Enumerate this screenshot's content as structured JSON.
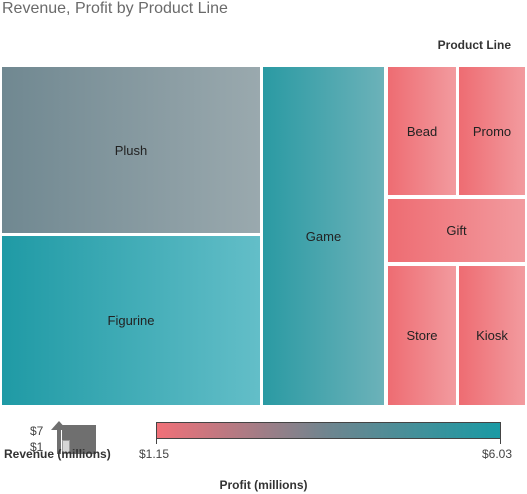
{
  "chart_data": {
    "type": "treemap",
    "title": "Revenue, Profit by Product Line",
    "legend_title": "Product Line",
    "size_measure": "Revenue (millions)",
    "color_measure": "Profit (millions)",
    "color_range": [
      "$1.15",
      "$6.03"
    ],
    "color_scale": {
      "low": "#f07078",
      "mid": "#6e858f",
      "high": "#1a9aa4"
    },
    "size_legend": {
      "max_label": "$7",
      "min_label": "$1"
    },
    "tiles": [
      {
        "label": "Plush",
        "color_from": "#708891",
        "color_to": "#9aa9ae"
      },
      {
        "label": "Figurine",
        "color_from": "#1f9aa5",
        "color_to": "#63bec8"
      },
      {
        "label": "Game",
        "color_from": "#2a9aa3",
        "color_to": "#6cb2b9"
      },
      {
        "label": "Bead",
        "color_from": "#ee6c72",
        "color_to": "#f29b9f"
      },
      {
        "label": "Promo",
        "color_from": "#ee6c72",
        "color_to": "#f29b9f"
      },
      {
        "label": "Gift",
        "color_from": "#ee6c72",
        "color_to": "#f29b9f"
      },
      {
        "label": "Store",
        "color_from": "#ee6c72",
        "color_to": "#f29b9f"
      },
      {
        "label": "Kiosk",
        "color_from": "#ee6c72",
        "color_to": "#f29b9f"
      }
    ]
  }
}
